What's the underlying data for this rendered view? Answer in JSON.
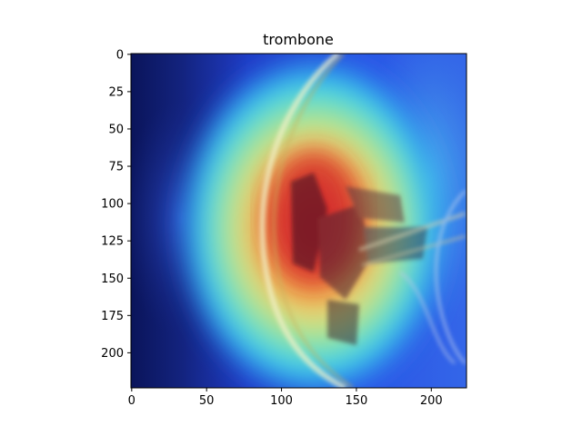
{
  "chart_data": {
    "type": "heatmap",
    "title": "trombone",
    "xlabel": "",
    "ylabel": "",
    "image_size": [
      224,
      224
    ],
    "xlim": [
      0,
      224
    ],
    "ylim": [
      224,
      0
    ],
    "x_ticks": [
      0,
      50,
      100,
      150,
      200
    ],
    "y_ticks": [
      0,
      25,
      50,
      75,
      100,
      125,
      150,
      175,
      200
    ],
    "grid": false,
    "legend": "none",
    "colormap": "jet",
    "overlay_description": "Grad-CAM style heatmap overlaid on photo of a trombone bell",
    "hotspot": {
      "x": 122,
      "y": 118
    }
  },
  "colors": {
    "deep_blue": "#0d1a66",
    "blue": "#1f3fd0",
    "cyan": "#3fd6e6",
    "green": "#8fe08a",
    "yellow": "#e8e070",
    "orange": "#f09040",
    "red": "#d63030",
    "axis": "#000000"
  }
}
